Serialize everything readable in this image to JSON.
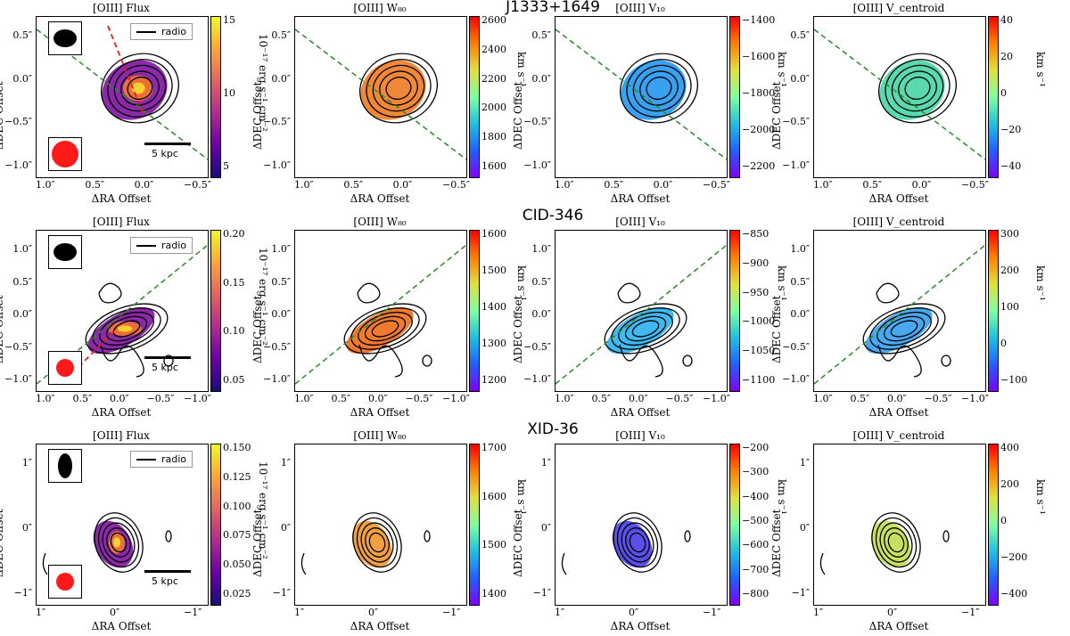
{
  "rows": [
    {
      "name": "J1333+1649",
      "panels": [
        {
          "title": "[OIII] Flux",
          "cbar_label": "10⁻¹⁷ erg s⁻¹ cm⁻²",
          "cbar_ticks": [
            "15",
            "10",
            "5"
          ],
          "cmap": "plasma",
          "legend": "radio",
          "scale": "5 kpc"
        },
        {
          "title": "[OIII] W₈₀",
          "cbar_label": "km s⁻¹",
          "cbar_ticks": [
            "2600",
            "2400",
            "2200",
            "2000",
            "1800",
            "1600"
          ],
          "cmap": "rainbow",
          "map_color": "#f0883a"
        },
        {
          "title": "[OIII] V₁₀",
          "cbar_label": "km s⁻¹",
          "cbar_ticks": [
            "−1400",
            "−1600",
            "−1800",
            "−2000",
            "−2200"
          ],
          "cmap": "rainbow",
          "map_color": "#3aa0f0"
        },
        {
          "title": "[OIII] V_centroid",
          "cbar_label": "km s⁻¹",
          "cbar_ticks": [
            "40",
            "20",
            "0",
            "−20",
            "−40"
          ],
          "cmap": "rainbow",
          "map_color": "#5ad8b0"
        }
      ],
      "yticks": [
        "0.5″",
        "0.0″",
        "−0.5″",
        "−1.0″"
      ],
      "xticks": [
        "1.0″",
        "0.5″",
        "0.0″",
        "−0.5″"
      ]
    },
    {
      "name": "CID-346",
      "panels": [
        {
          "title": "[OIII] Flux",
          "cbar_label": "10⁻¹⁷ erg s⁻¹ cm⁻²",
          "cbar_ticks": [
            "0.20",
            "0.15",
            "0.10",
            "0.05"
          ],
          "cmap": "plasma",
          "legend": "radio",
          "scale": "5 kpc"
        },
        {
          "title": "[OIII] W₈₀",
          "cbar_label": "km s⁻¹",
          "cbar_ticks": [
            "1600",
            "1500",
            "1400",
            "1300",
            "1200"
          ],
          "cmap": "rainbow",
          "map_color": "#f07a30"
        },
        {
          "title": "[OIII] V₁₀",
          "cbar_label": "km s⁻¹",
          "cbar_ticks": [
            "−850",
            "−900",
            "−950",
            "−1000",
            "−1050",
            "−1100"
          ],
          "cmap": "rainbow",
          "map_color": "#40b8f0"
        },
        {
          "title": "[OIII] V_centroid",
          "cbar_label": "km s⁻¹",
          "cbar_ticks": [
            "300",
            "200",
            "100",
            "0",
            "−100"
          ],
          "cmap": "rainbow",
          "map_color": "#4aa8f0"
        }
      ],
      "yticks": [
        "1.0″",
        "0.5″",
        "0.0″",
        "−0.5″",
        "−1.0″"
      ],
      "xticks": [
        "1.0″",
        "0.5″",
        "0.0″",
        "−0.5″",
        "−1.0″"
      ]
    },
    {
      "name": "XID-36",
      "panels": [
        {
          "title": "[OIII] Flux",
          "cbar_label": "10⁻¹⁷ erg s⁻¹ cm⁻²",
          "cbar_ticks": [
            "0.150",
            "0.125",
            "0.100",
            "0.075",
            "0.050",
            "0.025"
          ],
          "cmap": "plasma",
          "legend": "radio",
          "scale": "5 kpc"
        },
        {
          "title": "[OIII] W₈₀",
          "cbar_label": "km s⁻¹",
          "cbar_ticks": [
            "1700",
            "1600",
            "1500",
            "1400"
          ],
          "cmap": "rainbow",
          "map_color": "#f0a040"
        },
        {
          "title": "[OIII] V₁₀",
          "cbar_label": "km s⁻¹",
          "cbar_ticks": [
            "−200",
            "−300",
            "−400",
            "−500",
            "−600",
            "−700",
            "−800"
          ],
          "cmap": "rainbow",
          "map_color": "#5a50e8"
        },
        {
          "title": "[OIII] V_centroid",
          "cbar_label": "km s⁻¹",
          "cbar_ticks": [
            "400",
            "200",
            "0",
            "−200",
            "−400"
          ],
          "cmap": "rainbow",
          "map_color": "#c8e060"
        }
      ],
      "yticks": [
        "1″",
        "0″",
        "−1″"
      ],
      "xticks": [
        "1″",
        "0″",
        "−1″"
      ]
    }
  ],
  "axis": {
    "xlabel": "ΔRA Offset",
    "ylabel": "ΔDEC Offset"
  },
  "colors": {
    "pa_line": "#2a8a2a",
    "radio_line": "#e02020",
    "beam_flux": "#ff1a1a",
    "beam_radio": "#000000"
  }
}
